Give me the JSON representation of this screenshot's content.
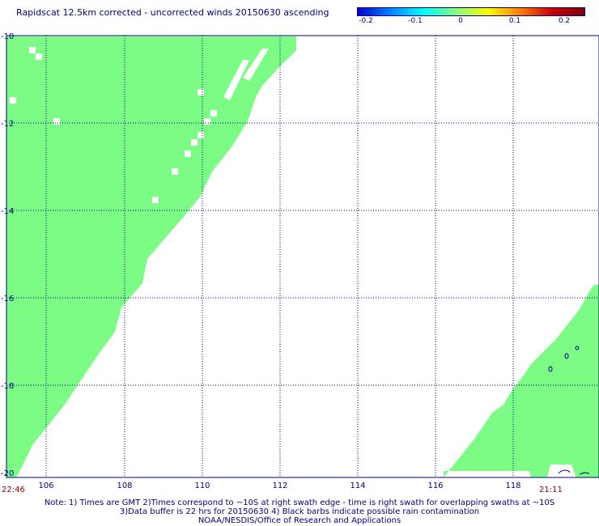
{
  "title": "Rapidscat 12.5km corrected - uncorrected winds 20150630 ascending",
  "colorbar": {
    "labels": [
      "-0.2",
      "-0.1",
      "0",
      "0.1",
      "0.2"
    ],
    "gradient": [
      "#0000c8",
      "#0080ff",
      "#00ffff",
      "#80ff80",
      "#ffff00",
      "#ff8000",
      "#c80000",
      "#800000"
    ]
  },
  "map": {
    "lat_labels": [
      "-10",
      "-12",
      "-14",
      "-16",
      "-18",
      "-20"
    ],
    "lon_labels": [
      "106",
      "108",
      "110",
      "112",
      "114",
      "116",
      "118"
    ],
    "grid_color": "#000080",
    "swath_color": "#7cfc84"
  },
  "times": {
    "left": "22:46",
    "right": "21:11"
  },
  "notes": {
    "line1": "Note: 1) Times are GMT 2)Times correspond to ~10S at right swath edge - time is right swath for overlapping swaths at ~10S",
    "line2": "3)Data buffer is 22 hrs for 20150630 4) Black barbs indicate possible rain contamination",
    "line3": "NOAA/NESDIS/Office of Research and Applications"
  }
}
